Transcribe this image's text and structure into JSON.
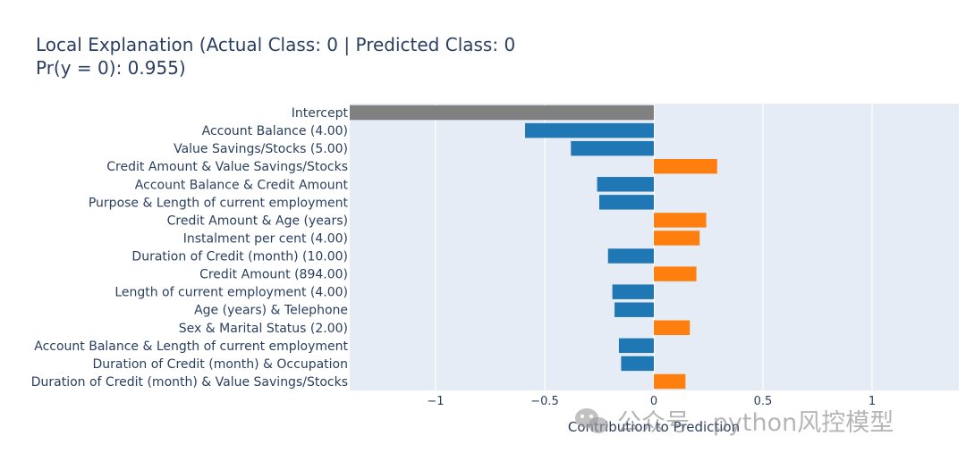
{
  "chart_data": {
    "type": "bar",
    "orientation": "horizontal",
    "title": "Local Explanation (Actual Class: 0 | Predicted Class: 0",
    "subtitle": "Pr(y = 0): 0.955)",
    "xlabel": "Contribution to Prediction",
    "ylabel": "",
    "xlim": [
      -1.4,
      1.4
    ],
    "xticks": [
      -1,
      -0.5,
      0,
      0.5,
      1
    ],
    "xtick_labels": [
      "−1",
      "−0.5",
      "0",
      "0.5",
      "1"
    ],
    "grid": true,
    "colors": {
      "intercept": "#808080",
      "negative": "#1f77b4",
      "positive": "#ff7f0e",
      "plot_bg": "#e5ecf6",
      "text": "#2a3f5f"
    },
    "categories": [
      "Intercept",
      "Account Balance (4.00)",
      "Value Savings/Stocks (5.00)",
      "Credit Amount & Value Savings/Stocks",
      "Account Balance & Credit Amount",
      "Purpose & Length of current employment",
      "Credit Amount & Age (years)",
      "Instalment per cent (4.00)",
      "Duration of Credit (month) (10.00)",
      "Credit Amount (894.00)",
      "Length of current employment (4.00)",
      "Age (years) & Telephone",
      "Sex & Marital Status (2.00)",
      "Account Balance & Length of current employment",
      "Duration of Credit (month) & Occupation",
      "Duration of Credit (month) & Value Savings/Stocks"
    ],
    "values": [
      -1.4,
      -0.59,
      -0.38,
      0.29,
      -0.26,
      -0.25,
      0.24,
      0.21,
      -0.21,
      0.195,
      -0.19,
      -0.18,
      0.165,
      -0.16,
      -0.15,
      0.145
    ]
  },
  "watermark": "公众号 · python风控模型",
  "watermark_icon": "wechat-icon"
}
